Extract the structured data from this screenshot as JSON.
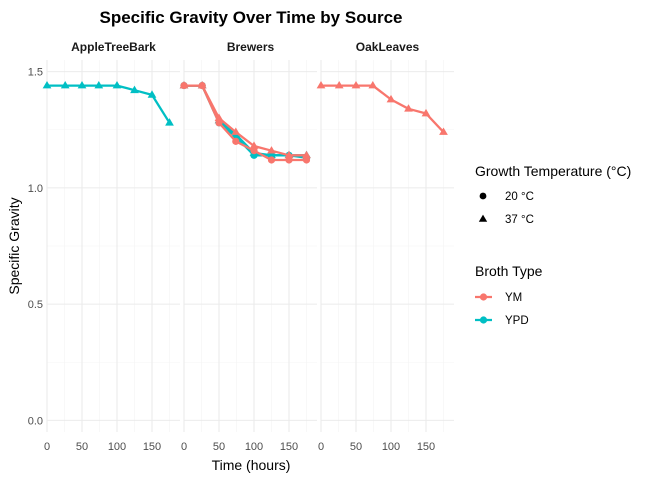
{
  "chart_data": {
    "type": "line",
    "title": "Specific Gravity Over Time by Source",
    "xlabel": "Time (hours)",
    "ylabel": "Specific Gravity",
    "xlim": [
      0,
      190
    ],
    "ylim": [
      -0.05,
      1.55
    ],
    "x_ticks": [
      "0",
      "50",
      "100",
      "150"
    ],
    "y_ticks": [
      "0.0",
      "0.5",
      "1.0",
      "1.5"
    ],
    "grid": true,
    "legend_position": "right",
    "colors": {
      "YM": "#F8766D",
      "YPD": "#00BFC4"
    },
    "legends": [
      {
        "title": "Growth Temperature (°C)",
        "entries": [
          {
            "label": "20 °C",
            "shape": "circle"
          },
          {
            "label": "37 °C",
            "shape": "triangle"
          }
        ]
      },
      {
        "title": "Broth Type",
        "entries": [
          {
            "label": "YM",
            "color": "#F8766D"
          },
          {
            "label": "YPD",
            "color": "#00BFC4"
          }
        ]
      }
    ],
    "panels": [
      {
        "title": "AppleTreeBark",
        "series": [
          {
            "broth": "YPD",
            "temp": "37 °C",
            "shape": "triangle",
            "x": [
              0,
              26,
              50,
              74,
              100,
              125,
              150,
              175
            ],
            "y": [
              1.44,
              1.44,
              1.44,
              1.44,
              1.44,
              1.42,
              1.4,
              1.28
            ]
          }
        ]
      },
      {
        "title": "Brewers",
        "series": [
          {
            "broth": "YPD",
            "temp": "20 °C",
            "shape": "circle",
            "x": [
              0,
              26,
              50,
              74,
              100,
              125,
              150,
              175
            ],
            "y": [
              1.44,
              1.44,
              1.28,
              1.22,
              1.14,
              1.14,
              1.14,
              1.13
            ]
          },
          {
            "broth": "YPD",
            "temp": "37 °C",
            "shape": "triangle",
            "x": [
              0,
              26,
              50,
              74,
              100,
              125,
              150,
              175
            ],
            "y": [
              1.44,
              1.44,
              1.29,
              1.23,
              1.15,
              1.14,
              1.14,
              1.14
            ]
          },
          {
            "broth": "YM",
            "temp": "20 °C",
            "shape": "circle",
            "x": [
              0,
              26,
              50,
              74,
              100,
              125,
              150,
              175
            ],
            "y": [
              1.44,
              1.44,
              1.28,
              1.2,
              1.16,
              1.12,
              1.12,
              1.12
            ]
          },
          {
            "broth": "YM",
            "temp": "37 °C",
            "shape": "triangle",
            "x": [
              0,
              26,
              50,
              74,
              100,
              125,
              150,
              175
            ],
            "y": [
              1.44,
              1.44,
              1.3,
              1.24,
              1.18,
              1.16,
              1.14,
              1.14
            ]
          }
        ]
      },
      {
        "title": "OakLeaves",
        "series": [
          {
            "broth": "YM",
            "temp": "37 °C",
            "shape": "triangle",
            "x": [
              0,
              26,
              50,
              74,
              100,
              125,
              150,
              175
            ],
            "y": [
              1.44,
              1.44,
              1.44,
              1.44,
              1.38,
              1.34,
              1.32,
              1.24
            ]
          }
        ]
      }
    ]
  }
}
